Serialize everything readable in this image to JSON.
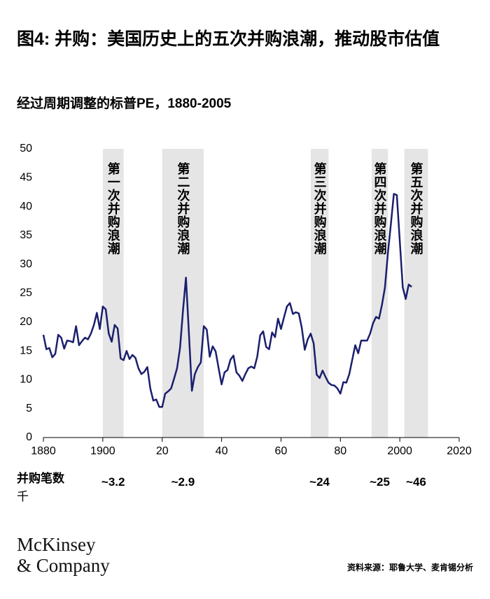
{
  "chart_data": {
    "type": "line",
    "title": "图4: 并购：美国历史上的五次并购浪潮，推动股市估值",
    "subtitle": "经过周期调整的标普PE，1880-2005",
    "x": [
      1880,
      1881,
      1882,
      1883,
      1884,
      1885,
      1886,
      1887,
      1888,
      1889,
      1890,
      1891,
      1892,
      1893,
      1894,
      1895,
      1896,
      1897,
      1898,
      1899,
      1900,
      1901,
      1902,
      1903,
      1904,
      1905,
      1906,
      1907,
      1908,
      1909,
      1910,
      1911,
      1912,
      1913,
      1914,
      1915,
      1916,
      1917,
      1918,
      1919,
      1920,
      1921,
      1922,
      1923,
      1924,
      1925,
      1926,
      1927,
      1928,
      1929,
      1930,
      1931,
      1932,
      1933,
      1934,
      1935,
      1936,
      1937,
      1938,
      1939,
      1940,
      1941,
      1942,
      1943,
      1944,
      1945,
      1946,
      1947,
      1948,
      1949,
      1950,
      1951,
      1952,
      1953,
      1954,
      1955,
      1956,
      1957,
      1958,
      1959,
      1960,
      1961,
      1962,
      1963,
      1964,
      1965,
      1966,
      1967,
      1968,
      1969,
      1970,
      1971,
      1972,
      1973,
      1974,
      1975,
      1976,
      1977,
      1978,
      1979,
      1980,
      1981,
      1982,
      1983,
      1984,
      1985,
      1986,
      1987,
      1988,
      1989,
      1990,
      1991,
      1992,
      1993,
      1994,
      1995,
      1996,
      1997,
      1998,
      1999,
      2000,
      2001,
      2002,
      2003,
      2004
    ],
    "series": [
      {
        "color": "#1b1f6e",
        "values": [
          17.8,
          15.3,
          15.5,
          13.9,
          14.5,
          17.8,
          17.3,
          15.4,
          16.8,
          16.7,
          16.5,
          19.3,
          16,
          16.7,
          17.3,
          17,
          18,
          19.5,
          21.6,
          18.8,
          22.7,
          22.2,
          18,
          16.6,
          19.5,
          18.9,
          13.7,
          13.4,
          15,
          13.6,
          14.3,
          13.8,
          12,
          11,
          11.4,
          12.2,
          8.5,
          6.4,
          6.6,
          5.3,
          5.3,
          7.6,
          8,
          8.5,
          10.2,
          12,
          15.5,
          22,
          27.7,
          18,
          8.1,
          11,
          12.2,
          13,
          19.3,
          18.7,
          14,
          15.8,
          14.9,
          12,
          9.2,
          11.3,
          11.7,
          13.5,
          14.2,
          11.3,
          10.7,
          9.8,
          11,
          12,
          12.3,
          12,
          14,
          17.7,
          18.4,
          15.7,
          15.3,
          18.2,
          17.4,
          20.6,
          18.8,
          20.8,
          22.7,
          23.3,
          21.4,
          21.7,
          21.5,
          19,
          15.2,
          17,
          18,
          16.3,
          10.9,
          10.3,
          11.6,
          10.5,
          9.5,
          9.1,
          9,
          8.5,
          7.6,
          9.6,
          9.5,
          11,
          13.5,
          16,
          14.6,
          16.8,
          16.8,
          16.8,
          18,
          19.8,
          20.9,
          20.6,
          23,
          26,
          32,
          37,
          42.2,
          42,
          34,
          26,
          24,
          26.5,
          26.1
        ]
      }
    ],
    "xlim": [
      1880,
      2020
    ],
    "xticks": [
      1880,
      1900,
      {
        "value": 1920,
        "label": "20"
      },
      {
        "value": 1940,
        "label": "40"
      },
      {
        "value": 1960,
        "label": "60"
      },
      {
        "value": 1980,
        "label": "80"
      },
      2000,
      2020
    ],
    "ylim": [
      0,
      50
    ],
    "yticks": [
      0,
      5,
      10,
      15,
      20,
      25,
      30,
      35,
      40,
      45,
      50
    ],
    "band_color": "#e5e5e5",
    "waves": [
      {
        "label": "第一次并购浪潮",
        "start": 1900,
        "end": 1907,
        "deals": "~3.2"
      },
      {
        "label": "第二次并购浪潮",
        "start": 1920,
        "end": 1934,
        "deals": "~2.9"
      },
      {
        "label": "第三次并购浪潮",
        "start": 1970,
        "end": 1976,
        "deals": "~24"
      },
      {
        "label": "第四次并购浪潮",
        "start": 1990.5,
        "end": 1996,
        "deals": "~25"
      },
      {
        "label": "第五次并购浪潮",
        "start": 2001.5,
        "end": 2009.5,
        "deals": "~46"
      }
    ],
    "deals_label": [
      "并购笔数",
      "千"
    ],
    "logo": [
      "McKinsey",
      "& Company"
    ],
    "source": "资料来源：耶鲁大学、麦肯锡分析"
  }
}
